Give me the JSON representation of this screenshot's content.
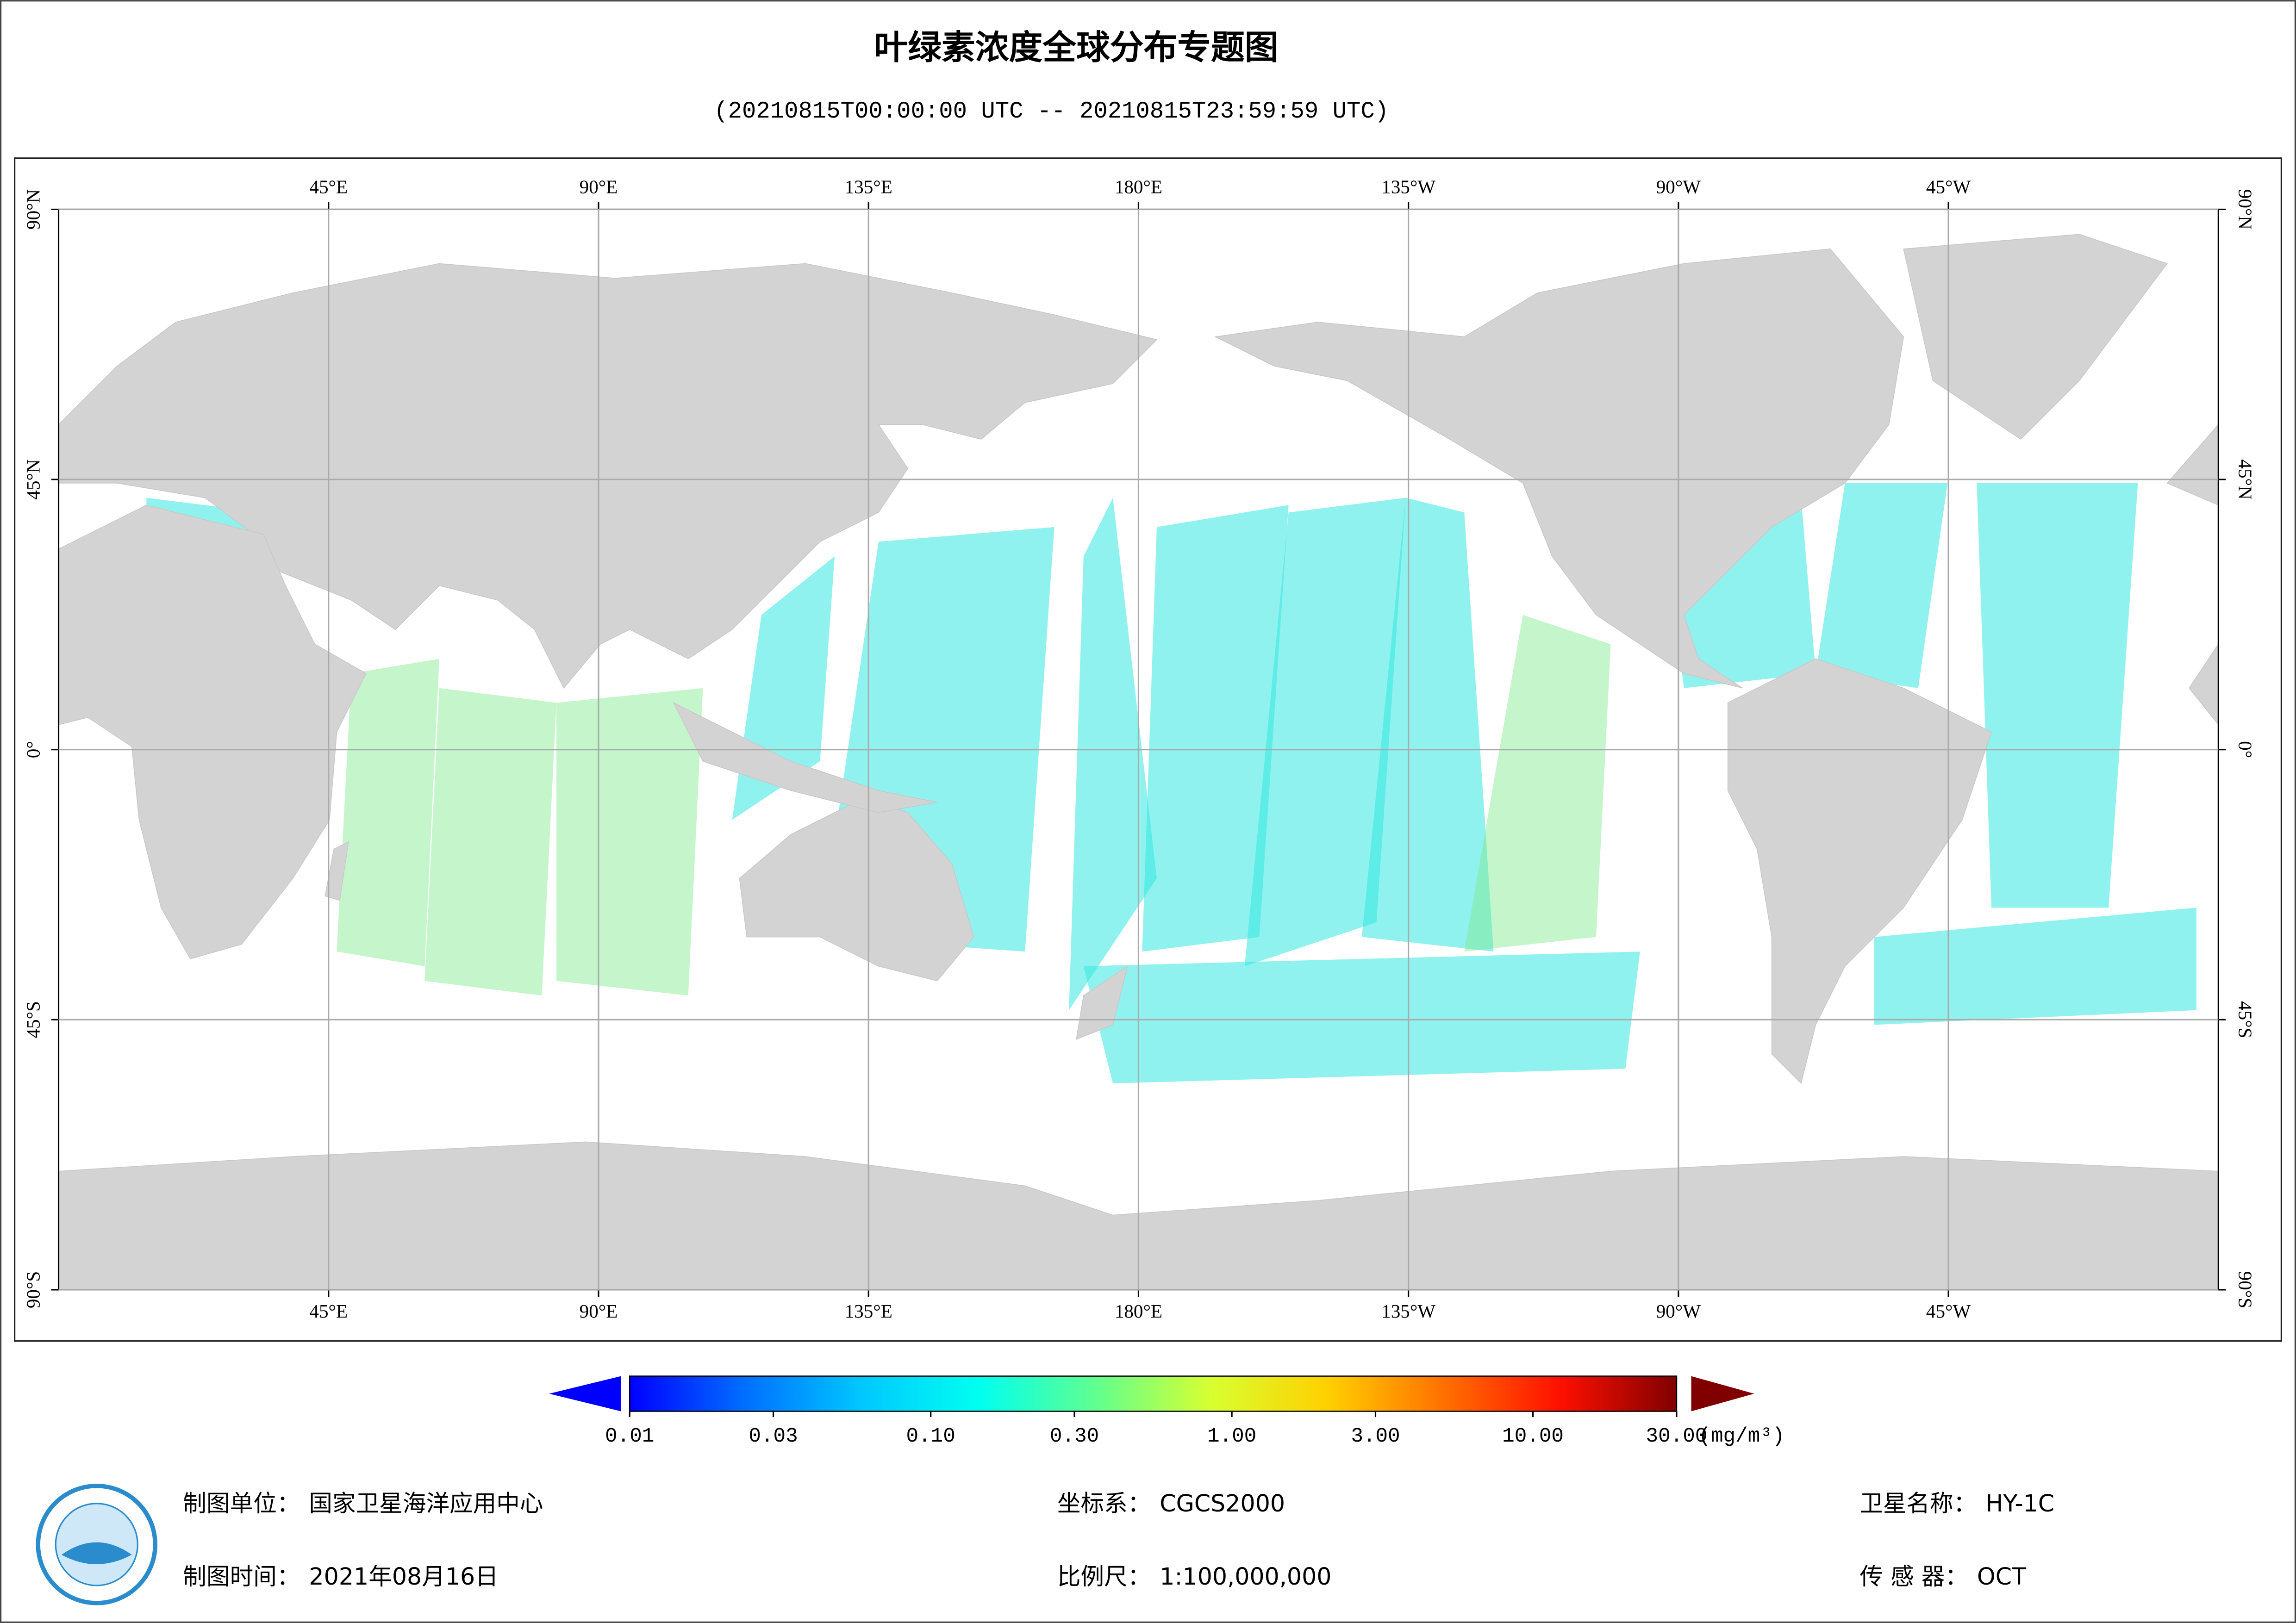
{
  "title": "叶绿素浓度全球分布专题图",
  "subtitle": "(20210815T00:00:00 UTC -- 20210815T23:59:59 UTC)",
  "map": {
    "lonlim": [
      0,
      360
    ],
    "latlim": [
      -90,
      90
    ],
    "grid": true,
    "lon_ticks": [
      {
        "value": 45,
        "label": "45°E"
      },
      {
        "value": 90,
        "label": "90°E"
      },
      {
        "value": 135,
        "label": "135°E"
      },
      {
        "value": 180,
        "label": "180°E"
      },
      {
        "value": 225,
        "label": "135°W"
      },
      {
        "value": 270,
        "label": "90°W"
      },
      {
        "value": 315,
        "label": "45°W"
      }
    ],
    "lat_ticks": [
      {
        "value": 90,
        "label": "90°N"
      },
      {
        "value": 45,
        "label": "45°N"
      },
      {
        "value": 0,
        "label": "0°"
      },
      {
        "value": -45,
        "label": "45°S"
      },
      {
        "value": -90,
        "label": "90°S"
      }
    ]
  },
  "colorbar": {
    "log": true,
    "lim": [
      0.01,
      30
    ],
    "unit": "(mg/m³)",
    "colors": [
      "#0000ff",
      "#0070ff",
      "#00c8ff",
      "#00fff0",
      "#60ff90",
      "#d8ff30",
      "#ffd000",
      "#ff7000",
      "#ff1000",
      "#800000"
    ],
    "ticks": [
      {
        "value": 0.01,
        "label": "0.01"
      },
      {
        "value": 0.03,
        "label": "0.03"
      },
      {
        "value": 0.1,
        "label": "0.10"
      },
      {
        "value": 0.3,
        "label": "0.30"
      },
      {
        "value": 1,
        "label": "1.00"
      },
      {
        "value": 3,
        "label": "3.00"
      },
      {
        "value": 10,
        "label": "10.00"
      },
      {
        "value": 30,
        "label": "30.00"
      }
    ]
  },
  "footer": [
    {
      "label": "制图单位：",
      "value": "国家卫星海洋应用中心"
    },
    {
      "label": "制图时间：",
      "value": "2021年08月16日"
    },
    {
      "label": "坐标系：",
      "value": "CGCS2000"
    },
    {
      "label": "比例尺：",
      "value": "1:100,000,000"
    },
    {
      "label": "卫星名称：",
      "value": "HY-1C"
    },
    {
      "label": "传 感 器：",
      "value": "OCT"
    }
  ]
}
